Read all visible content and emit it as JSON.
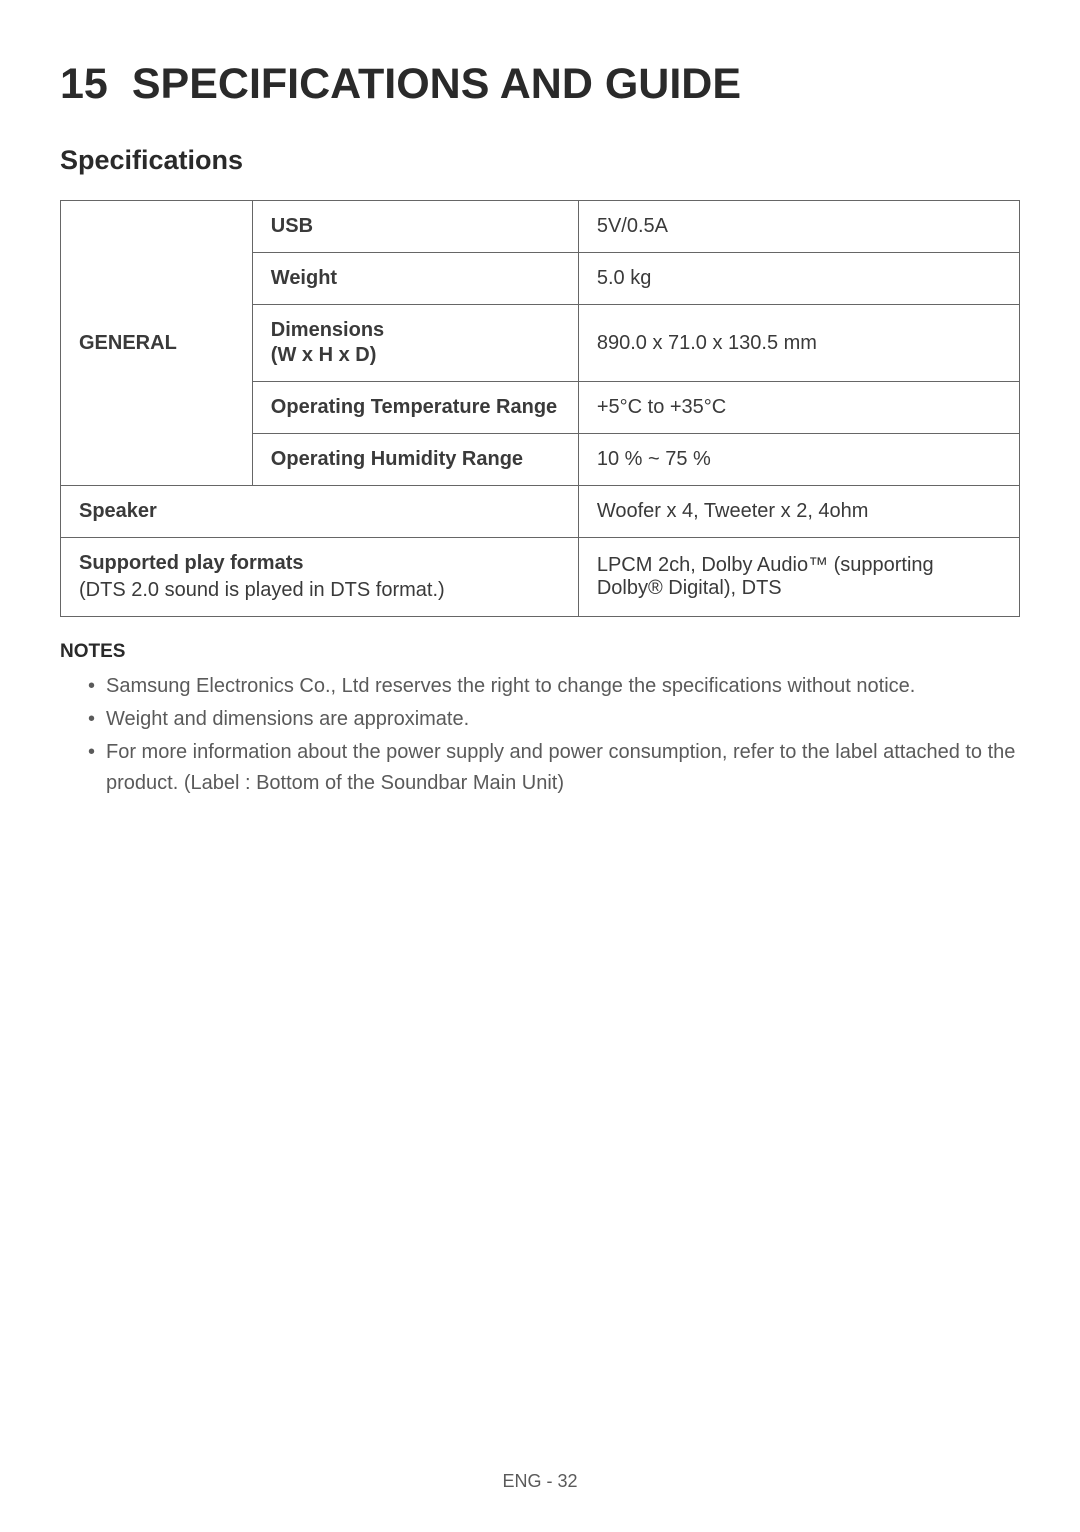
{
  "chapter": {
    "number": "15",
    "title": "SPECIFICATIONS AND GUIDE"
  },
  "section_title": "Specifications",
  "table": {
    "general_header": "GENERAL",
    "rows": {
      "usb": {
        "label": "USB",
        "value": "5V/0.5A"
      },
      "weight": {
        "label": "Weight",
        "value": "5.0 kg"
      },
      "dimensions": {
        "label": "Dimensions",
        "sublabel": "(W x H x D)",
        "value": "890.0 x 71.0 x 130.5 mm"
      },
      "temp": {
        "label": "Operating Temperature Range",
        "value": "+5°C to +35°C"
      },
      "humidity": {
        "label": "Operating Humidity Range",
        "value": "10 % ~ 75 %"
      }
    },
    "speaker": {
      "label": "Speaker",
      "value": "Woofer x 4, Tweeter x 2, 4ohm"
    },
    "formats": {
      "label": "Supported play formats",
      "sublabel": "(DTS 2.0 sound is played in DTS format.)",
      "value": "LPCM 2ch, Dolby Audio™ (supporting Dolby® Digital), DTS"
    }
  },
  "notes": {
    "heading": "NOTES",
    "items": [
      "Samsung Electronics Co., Ltd reserves the right to change the specifications without notice.",
      "Weight and dimensions are approximate.",
      "For more information about the power supply and power consumption, refer to the label attached to the product. (Label : Bottom of the Soundbar Main Unit)"
    ]
  },
  "footer": "ENG - 32"
}
